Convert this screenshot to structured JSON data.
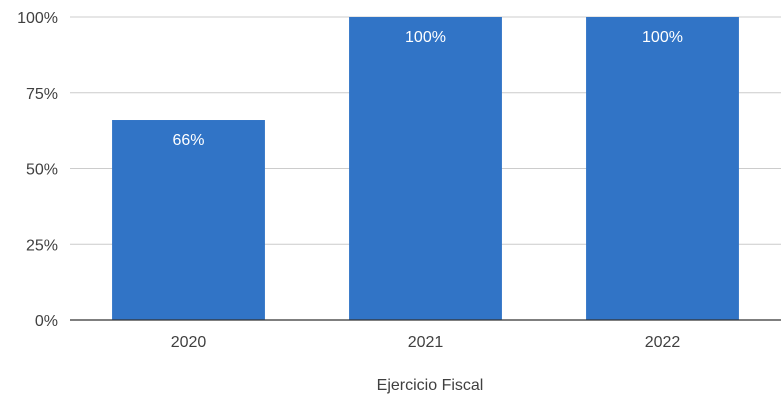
{
  "chart_data": {
    "type": "bar",
    "categories": [
      "2020",
      "2021",
      "2022"
    ],
    "values": [
      66,
      100,
      100
    ],
    "data_labels": [
      "66%",
      "100%",
      "100%"
    ],
    "y_ticks": [
      {
        "value": 0,
        "label": "0%"
      },
      {
        "value": 25,
        "label": "25%"
      },
      {
        "value": 50,
        "label": "50%"
      },
      {
        "value": 75,
        "label": "75%"
      },
      {
        "value": 100,
        "label": "100%"
      }
    ],
    "ylim": [
      0,
      100
    ],
    "xlabel": "Ejercicio Fiscal",
    "ylabel": "",
    "title": "",
    "grid": true,
    "bar_color": "#3174c6",
    "label_color": "#ffffff"
  }
}
